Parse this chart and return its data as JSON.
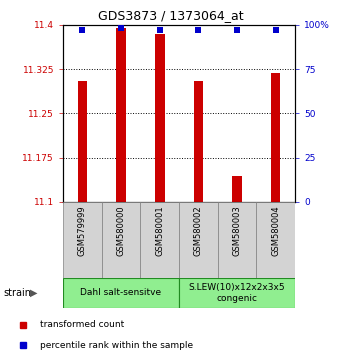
{
  "title": "GDS3873 / 1373064_at",
  "samples": [
    "GSM579999",
    "GSM580000",
    "GSM580001",
    "GSM580002",
    "GSM580003",
    "GSM580004"
  ],
  "red_values": [
    11.305,
    11.395,
    11.385,
    11.305,
    11.143,
    11.318
  ],
  "blue_values": [
    97,
    98,
    97,
    97,
    97,
    97
  ],
  "ylim_left": [
    11.1,
    11.4
  ],
  "ylim_right": [
    0,
    100
  ],
  "yticks_left": [
    11.1,
    11.175,
    11.25,
    11.325,
    11.4
  ],
  "yticks_right": [
    0,
    25,
    50,
    75,
    100
  ],
  "ytick_labels_left": [
    "11.1",
    "11.175",
    "11.25",
    "11.325",
    "11.4"
  ],
  "ytick_labels_right": [
    "0",
    "25",
    "50",
    "75",
    "100%"
  ],
  "groups": [
    {
      "label": "Dahl salt-sensitve",
      "start": 0,
      "end": 3,
      "color": "#90EE90"
    },
    {
      "label": "S.LEW(10)x12x2x3x5\ncongenic",
      "start": 3,
      "end": 6,
      "color": "#90EE90"
    }
  ],
  "strain_label": "strain",
  "legend_red_label": "transformed count",
  "legend_blue_label": "percentile rank within the sample",
  "bar_color": "#CC0000",
  "dot_color": "#0000CC",
  "bar_width": 0.25,
  "dot_size": 4,
  "tick_color_left": "#CC0000",
  "tick_color_right": "#0000CC",
  "sample_box_color": "#d3d3d3",
  "group_edge_color": "#228B22"
}
